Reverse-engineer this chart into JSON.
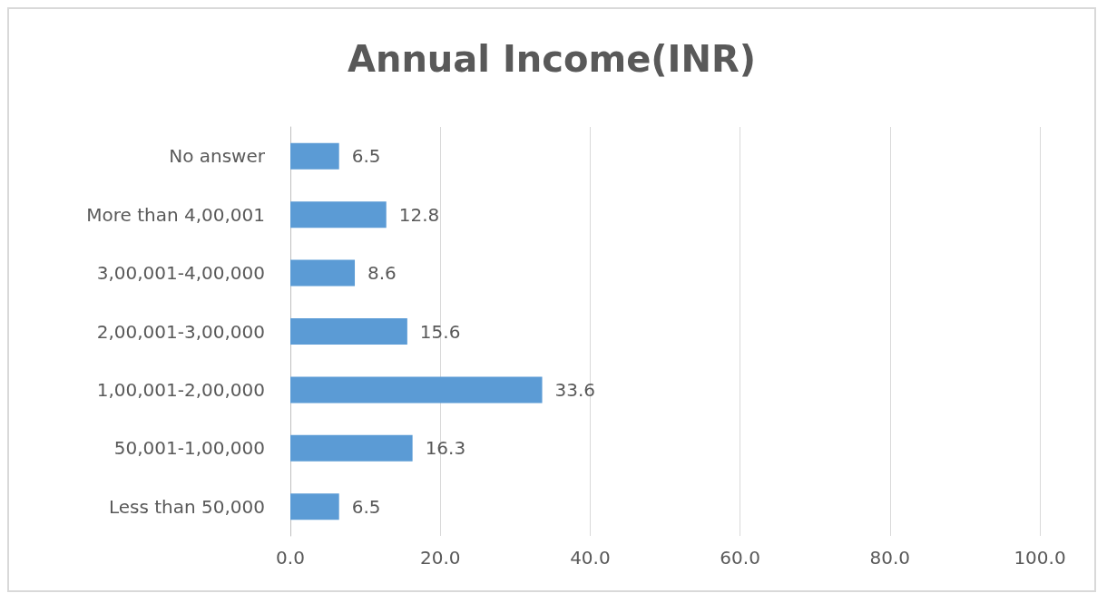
{
  "chart_data": {
    "type": "bar",
    "title": "Annual Income(INR)",
    "orientation": "horizontal",
    "categories": [
      "No answer",
      "More than 4,00,001",
      "3,00,001-4,00,000",
      "2,00,001-3,00,000",
      "1,00,001-2,00,000",
      "50,001-1,00,000",
      "Less than 50,000"
    ],
    "values": [
      6.5,
      12.8,
      8.6,
      15.6,
      33.6,
      16.3,
      6.5
    ],
    "color": "#5b9bd5",
    "xlim": [
      0,
      100
    ],
    "xticks": [
      {
        "value": 0,
        "label": "0.0"
      },
      {
        "value": 20,
        "label": "20.0"
      },
      {
        "value": 40,
        "label": "40.0"
      },
      {
        "value": 60,
        "label": "60.0"
      },
      {
        "value": 80,
        "label": "80.0"
      },
      {
        "value": 100,
        "label": "100.0"
      }
    ],
    "grid": "x",
    "data_labels": true
  }
}
